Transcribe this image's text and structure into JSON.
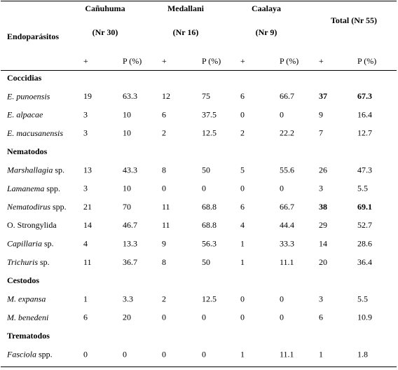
{
  "table": {
    "row_header": "Endoparásitos",
    "groups": [
      {
        "name": "Cañuhuma",
        "n": "(Nr 30)"
      },
      {
        "name": "Medallani",
        "n": "(Nr 16)"
      },
      {
        "name": "Caalaya",
        "n": "(Nr 9)"
      }
    ],
    "total": "Total (Nr 55)",
    "subheaders": [
      "+",
      "P (%)",
      "+",
      "P (%)",
      "+",
      "P (%)",
      "+",
      "P (%)"
    ],
    "sections": [
      {
        "name": "Coccidias",
        "rows": [
          {
            "italic": "E. punoensis",
            "values": [
              19,
              63.3,
              12,
              75,
              6,
              66.7,
              37,
              67.3
            ],
            "total_bold": true
          },
          {
            "italic": "E. alpacae",
            "values": [
              3,
              10,
              6,
              37.5,
              0,
              0,
              9,
              16.4
            ]
          },
          {
            "italic": "E. macusanensis",
            "values": [
              3,
              10,
              2,
              12.5,
              2,
              22.2,
              7,
              12.7
            ]
          }
        ]
      },
      {
        "name": "Nematodos",
        "rows": [
          {
            "italic": "Marshallagia",
            "suffix": "sp.",
            "values": [
              13,
              43.3,
              8,
              50,
              5,
              55.6,
              26,
              47.3
            ]
          },
          {
            "italic": "Lamanema",
            "suffix": "spp.",
            "values": [
              3,
              10,
              0,
              0,
              0,
              0,
              3,
              5.5
            ]
          },
          {
            "italic": "Nematodirus",
            "suffix": "spp.",
            "values": [
              21,
              70,
              11,
              68.8,
              6,
              66.7,
              38,
              69.1
            ],
            "total_bold": true
          },
          {
            "plain": "O. Strongylida",
            "values": [
              14,
              46.7,
              11,
              68.8,
              4,
              44.4,
              29,
              52.7
            ]
          },
          {
            "italic": "Capillaria",
            "suffix": "sp.",
            "values": [
              4,
              13.3,
              9,
              56.3,
              1,
              33.3,
              14,
              28.6
            ]
          },
          {
            "italic": "Trichuris",
            "suffix": "sp.",
            "values": [
              11,
              36.7,
              8,
              50,
              1,
              11.1,
              20,
              36.4
            ]
          }
        ]
      },
      {
        "name": "Cestodos",
        "rows": [
          {
            "italic": "M. expansa",
            "values": [
              1,
              3.3,
              2,
              12.5,
              0,
              0,
              3,
              5.5
            ]
          },
          {
            "italic": "M. benedeni",
            "values": [
              6,
              20,
              0,
              0,
              0,
              0,
              6,
              10.9
            ]
          }
        ]
      },
      {
        "name": "Trematodos",
        "rows": [
          {
            "italic": "Fasciola",
            "suffix": "spp.",
            "values": [
              0,
              0,
              0,
              0,
              1,
              11.1,
              1,
              1.8
            ]
          }
        ]
      }
    ]
  }
}
